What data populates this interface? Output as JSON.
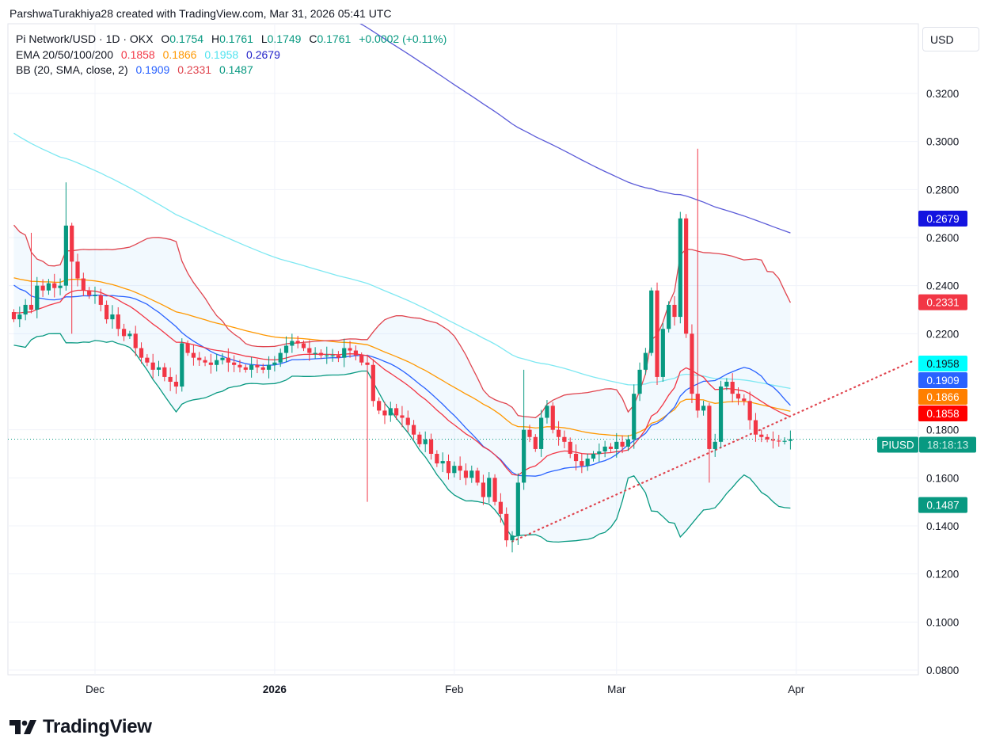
{
  "credit": "ParshwaTurakhiya28 created with TradingView.com, Mar 31, 2026 05:41 UTC",
  "legend": {
    "symbol": "Pi Network/USD · 1D · OKX",
    "o_label": "O",
    "o": "0.1754",
    "h_label": "H",
    "h": "0.1761",
    "l_label": "L",
    "l": "0.1749",
    "c_label": "C",
    "c": "0.1761",
    "change": "+0.0002 (+0.11%)",
    "ema_label": "EMA 20/50/100/200",
    "ema20": "0.1858",
    "ema50": "0.1866",
    "ema100": "0.1958",
    "ema200": "0.2679",
    "bb_label": "BB (20, SMA, close, 2)",
    "bb_basis": "0.1909",
    "bb_upper": "0.2331",
    "bb_lower": "0.1487"
  },
  "currency": "USD",
  "footer_logo": "TradingView",
  "price_tag": {
    "symbol": "PIUSD",
    "countdown": "18:18:13"
  },
  "colors": {
    "up": "#089981",
    "down": "#f23645",
    "ema20": "#f23645",
    "ema50": "#ff9800",
    "ema100": "#7ee8f2",
    "ema200": "#5b5bd8",
    "bb_basis": "#2962ff",
    "bb_upper": "#e0454f",
    "bb_lower": "#089981",
    "trendline": "#e0454f"
  },
  "chart_data": {
    "type": "candlestick",
    "title": "Pi Network/USD · 1D · OKX",
    "first_date": "Nov 17",
    "y_ticks": [
      "0.3200",
      "0.3000",
      "0.2800",
      "0.2600",
      "0.2400",
      "0.2200",
      "0.1800",
      "0.1600",
      "0.1400",
      "0.1200",
      "0.1000",
      "0.0800"
    ],
    "ylim": [
      0.08,
      0.32
    ],
    "x_ticks": [
      {
        "label": "Dec",
        "day": 14
      },
      {
        "label": "2026",
        "day": 45
      },
      {
        "label": "Feb",
        "day": 76
      },
      {
        "label": "Mar",
        "day": 104
      },
      {
        "label": "Apr",
        "day": 135
      }
    ],
    "close": [
      0.226,
      0.228,
      0.232,
      0.23,
      0.24,
      0.238,
      0.241,
      0.239,
      0.24,
      0.265,
      0.25,
      0.243,
      0.238,
      0.236,
      0.236,
      0.232,
      0.226,
      0.228,
      0.222,
      0.219,
      0.22,
      0.214,
      0.21,
      0.208,
      0.205,
      0.206,
      0.202,
      0.2,
      0.198,
      0.216,
      0.212,
      0.21,
      0.209,
      0.208,
      0.207,
      0.209,
      0.21,
      0.208,
      0.207,
      0.206,
      0.205,
      0.207,
      0.206,
      0.205,
      0.207,
      0.208,
      0.212,
      0.215,
      0.217,
      0.216,
      0.214,
      0.212,
      0.212,
      0.211,
      0.211,
      0.211,
      0.21,
      0.214,
      0.213,
      0.211,
      0.208,
      0.207,
      0.192,
      0.188,
      0.186,
      0.189,
      0.186,
      0.185,
      0.182,
      0.178,
      0.174,
      0.176,
      0.17,
      0.166,
      0.167,
      0.162,
      0.165,
      0.163,
      0.16,
      0.163,
      0.158,
      0.152,
      0.16,
      0.15,
      0.145,
      0.134,
      0.136,
      0.158,
      0.18,
      0.177,
      0.172,
      0.185,
      0.19,
      0.18,
      0.177,
      0.175,
      0.17,
      0.167,
      0.165,
      0.168,
      0.17,
      0.171,
      0.173,
      0.172,
      0.175,
      0.173,
      0.176,
      0.195,
      0.205,
      0.212,
      0.238,
      0.202,
      0.222,
      0.232,
      0.227,
      0.268,
      0.22,
      0.195,
      0.188,
      0.19,
      0.172,
      0.175,
      0.198,
      0.2,
      0.195,
      0.193,
      0.192,
      0.184,
      0.178,
      0.177,
      0.176,
      0.1755,
      0.1754,
      0.1754,
      0.1761
    ],
    "first_open": 0.229,
    "default_wick": 0.003,
    "wick_overrides": [
      {
        "day": 9,
        "high": 0.283
      },
      {
        "day": 10,
        "low": 0.22
      },
      {
        "day": 3,
        "high": 0.262
      },
      {
        "day": 61,
        "low": 0.15
      },
      {
        "day": 88,
        "high": 0.205
      },
      {
        "day": 86,
        "low": 0.129
      },
      {
        "day": 118,
        "high": 0.297
      },
      {
        "day": 112,
        "low": 0.2
      },
      {
        "day": 120,
        "low": 0.158
      }
    ],
    "ema_seeds": {
      "ema20": 0.229,
      "ema50": 0.244,
      "ema100": 0.305,
      "ema200": 0.46
    },
    "bb_history_closes": [
      0.26,
      0.25,
      0.27,
      0.255,
      0.245,
      0.25,
      0.24,
      0.235,
      0.245,
      0.25,
      0.24,
      0.232,
      0.238,
      0.228,
      0.235,
      0.23,
      0.225,
      0.228,
      0.222
    ],
    "last_price": 0.1761,
    "trendline": {
      "from": {
        "day": 86,
        "price": 0.1335
      },
      "to": {
        "day": 155,
        "price": 0.2085
      },
      "style": "dotted"
    },
    "axis_labels": [
      {
        "key": "ema200",
        "text": "0.2679",
        "price": 0.2679,
        "bg": "#1414e0",
        "fg": "#ffffff"
      },
      {
        "key": "bb_upper",
        "text": "0.2331",
        "price": 0.2331,
        "bg": "#f23645",
        "fg": "#ffffff"
      },
      {
        "key": "ema100",
        "text": "0.1958",
        "price": 0.1979,
        "bg": "#00ffff",
        "fg": "#131722"
      },
      {
        "key": "bb_basis",
        "text": "0.1909",
        "price": 0.1915,
        "bg": "#2962ff",
        "fg": "#ffffff"
      },
      {
        "key": "ema50",
        "text": "0.1866",
        "price": 0.1852,
        "bg": "#ff7f00",
        "fg": "#ffffff"
      },
      {
        "key": "ema20",
        "text": "0.1858",
        "price": 0.1788,
        "bg": "#ff0000",
        "fg": "#ffffff"
      },
      {
        "key": "bb_lower",
        "text": "0.1487",
        "price": 0.1487,
        "bg": "#089981",
        "fg": "#ffffff"
      }
    ]
  }
}
